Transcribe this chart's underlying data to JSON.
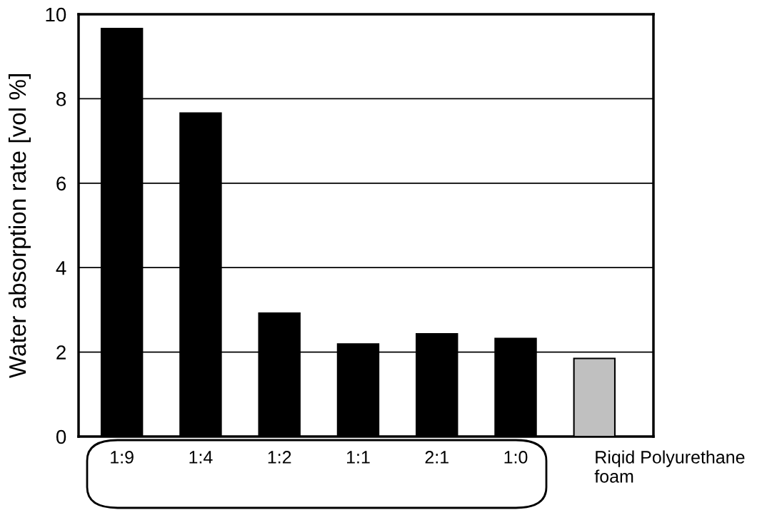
{
  "chart_data": {
    "type": "bar",
    "ylabel": "Water absorption rate [vol %]",
    "categories": [
      "1:9",
      "1:4",
      "1:2",
      "1:1",
      "2:1",
      "1:0",
      "Riqid Polyurethane\nfoam"
    ],
    "values": [
      9.66,
      7.66,
      2.92,
      2.19,
      2.43,
      2.32,
      1.85
    ],
    "colors": [
      "#000000",
      "#000000",
      "#000000",
      "#000000",
      "#000000",
      "#000000",
      "#c0c0c0"
    ],
    "ylim": [
      0,
      10
    ],
    "yticks": [
      0,
      2,
      4,
      6,
      8,
      10
    ],
    "grid": "y"
  }
}
